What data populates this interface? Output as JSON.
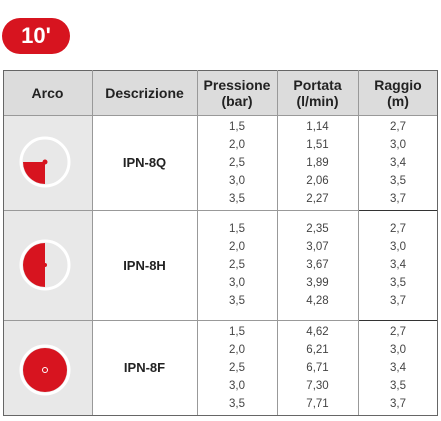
{
  "badge": "10'",
  "table": {
    "header": [
      [
        "Arco"
      ],
      [
        "Descrizione"
      ],
      [
        "Pressione",
        "(bar)"
      ],
      [
        "Portata",
        "(l/min)"
      ],
      [
        "Raggio",
        "(m)"
      ]
    ],
    "groups": [
      {
        "model": "IPN-8Q",
        "rows": [
          [
            "1,5",
            "1,14",
            "2,7"
          ],
          [
            "2,0",
            "1,51",
            "3,0"
          ],
          [
            "2,5",
            "1,89",
            "3,4"
          ],
          [
            "3,0",
            "2,06",
            "3,5"
          ],
          [
            "3,5",
            "2,27",
            "3,7"
          ]
        ]
      },
      {
        "model": "IPN-8H",
        "rows": [
          [
            "1,5",
            "2,35",
            "2,7"
          ],
          [
            "2,0",
            "3,07",
            "3,0"
          ],
          [
            "2,5",
            "3,67",
            "3,4"
          ],
          [
            "3,0",
            "3,99",
            "3,5"
          ],
          [
            "3,5",
            "4,28",
            "3,7"
          ]
        ]
      },
      {
        "model": "IPN-8F",
        "rows": [
          [
            "1,5",
            "4,62",
            "2,7"
          ],
          [
            "2,0",
            "6,21",
            "3,0"
          ],
          [
            "2,5",
            "6,71",
            "3,4"
          ],
          [
            "3,0",
            "7,30",
            "3,5"
          ],
          [
            "3,5",
            "7,71",
            "3,7"
          ]
        ]
      }
    ]
  }
}
